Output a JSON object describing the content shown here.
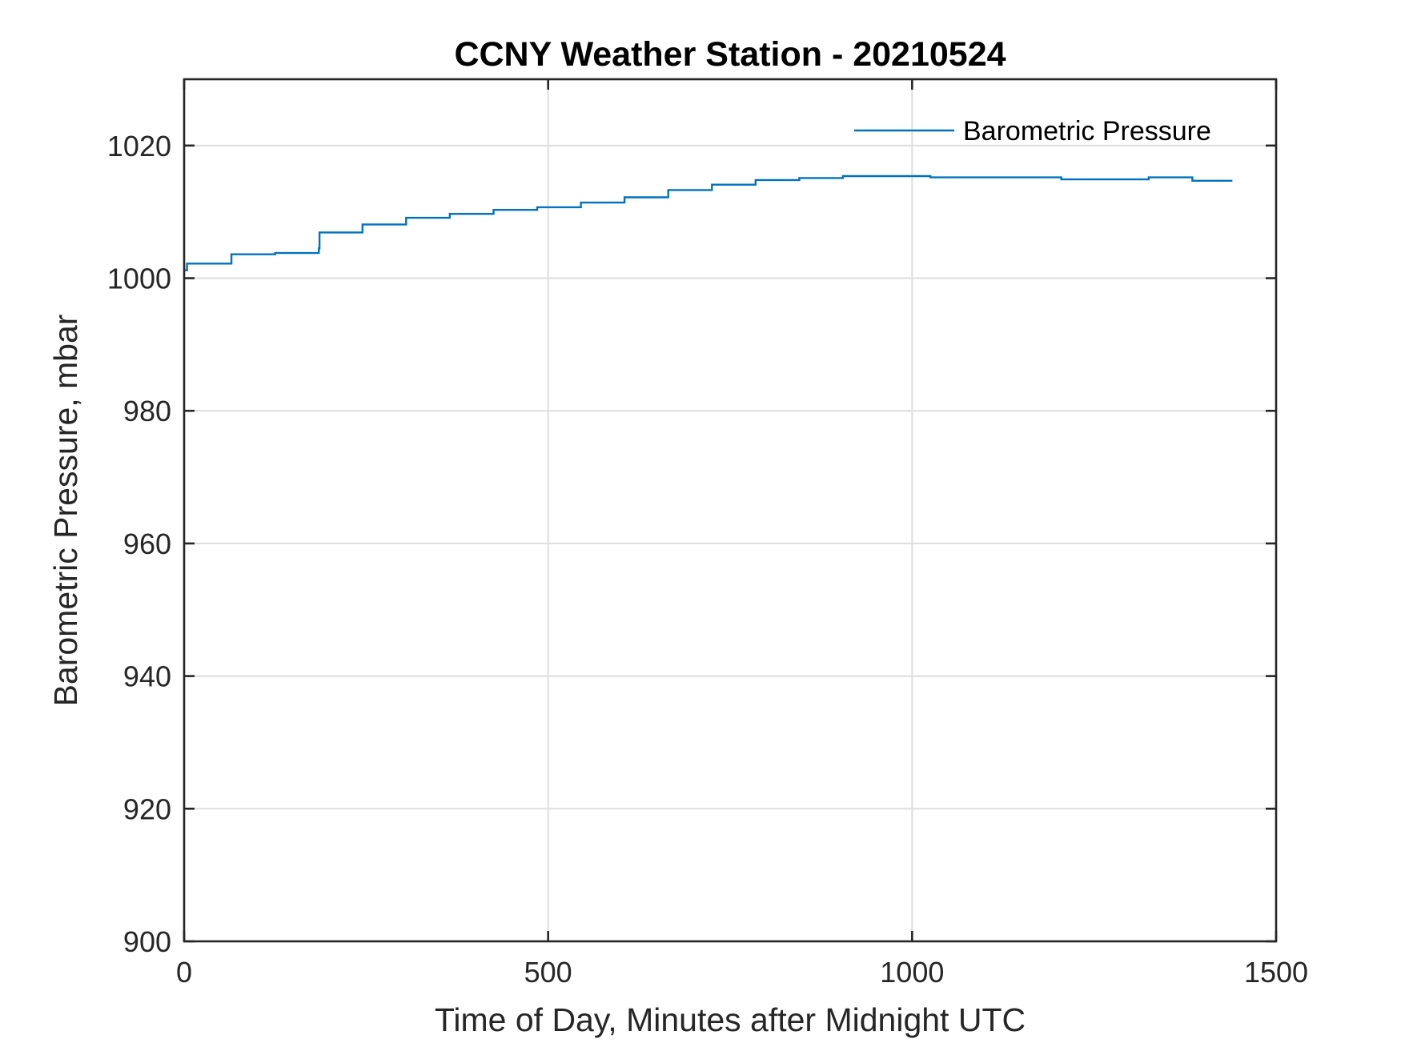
{
  "chart_data": {
    "type": "line",
    "title": "CCNY Weather Station - 20210524",
    "xlabel": "Time of Day, Minutes after Midnight UTC",
    "ylabel": "Barometric Pressure, mbar",
    "xlim": [
      0,
      1500
    ],
    "ylim": [
      900,
      1030
    ],
    "xticks": [
      0,
      500,
      1000,
      1500
    ],
    "xtick_labels": [
      "0",
      "500",
      "1000",
      "1500"
    ],
    "yticks": [
      900,
      920,
      940,
      960,
      980,
      1000,
      1020
    ],
    "ytick_labels": [
      "900",
      "920",
      "940",
      "960",
      "980",
      "1000",
      "1020"
    ],
    "grid": true,
    "legend": {
      "location": "top-right",
      "box": false
    },
    "series": [
      {
        "name": "Barometric Pressure",
        "color": "#0072BD",
        "step": true,
        "x": [
          0,
          4,
          65,
          125,
          185,
          186,
          245,
          305,
          365,
          425,
          485,
          545,
          605,
          665,
          725,
          785,
          845,
          905,
          965,
          1025,
          1085,
          1145,
          1205,
          1265,
          1325,
          1385,
          1440
        ],
        "y": [
          1001.2,
          1002.2,
          1003.6,
          1003.8,
          1004.5,
          1006.9,
          1008.1,
          1009.1,
          1009.7,
          1010.3,
          1010.7,
          1011.4,
          1012.2,
          1013.3,
          1014.1,
          1014.8,
          1015.1,
          1015.4,
          1015.4,
          1015.2,
          1015.2,
          1015.2,
          1014.9,
          1014.9,
          1015.2,
          1014.7,
          1014.7
        ]
      }
    ]
  }
}
